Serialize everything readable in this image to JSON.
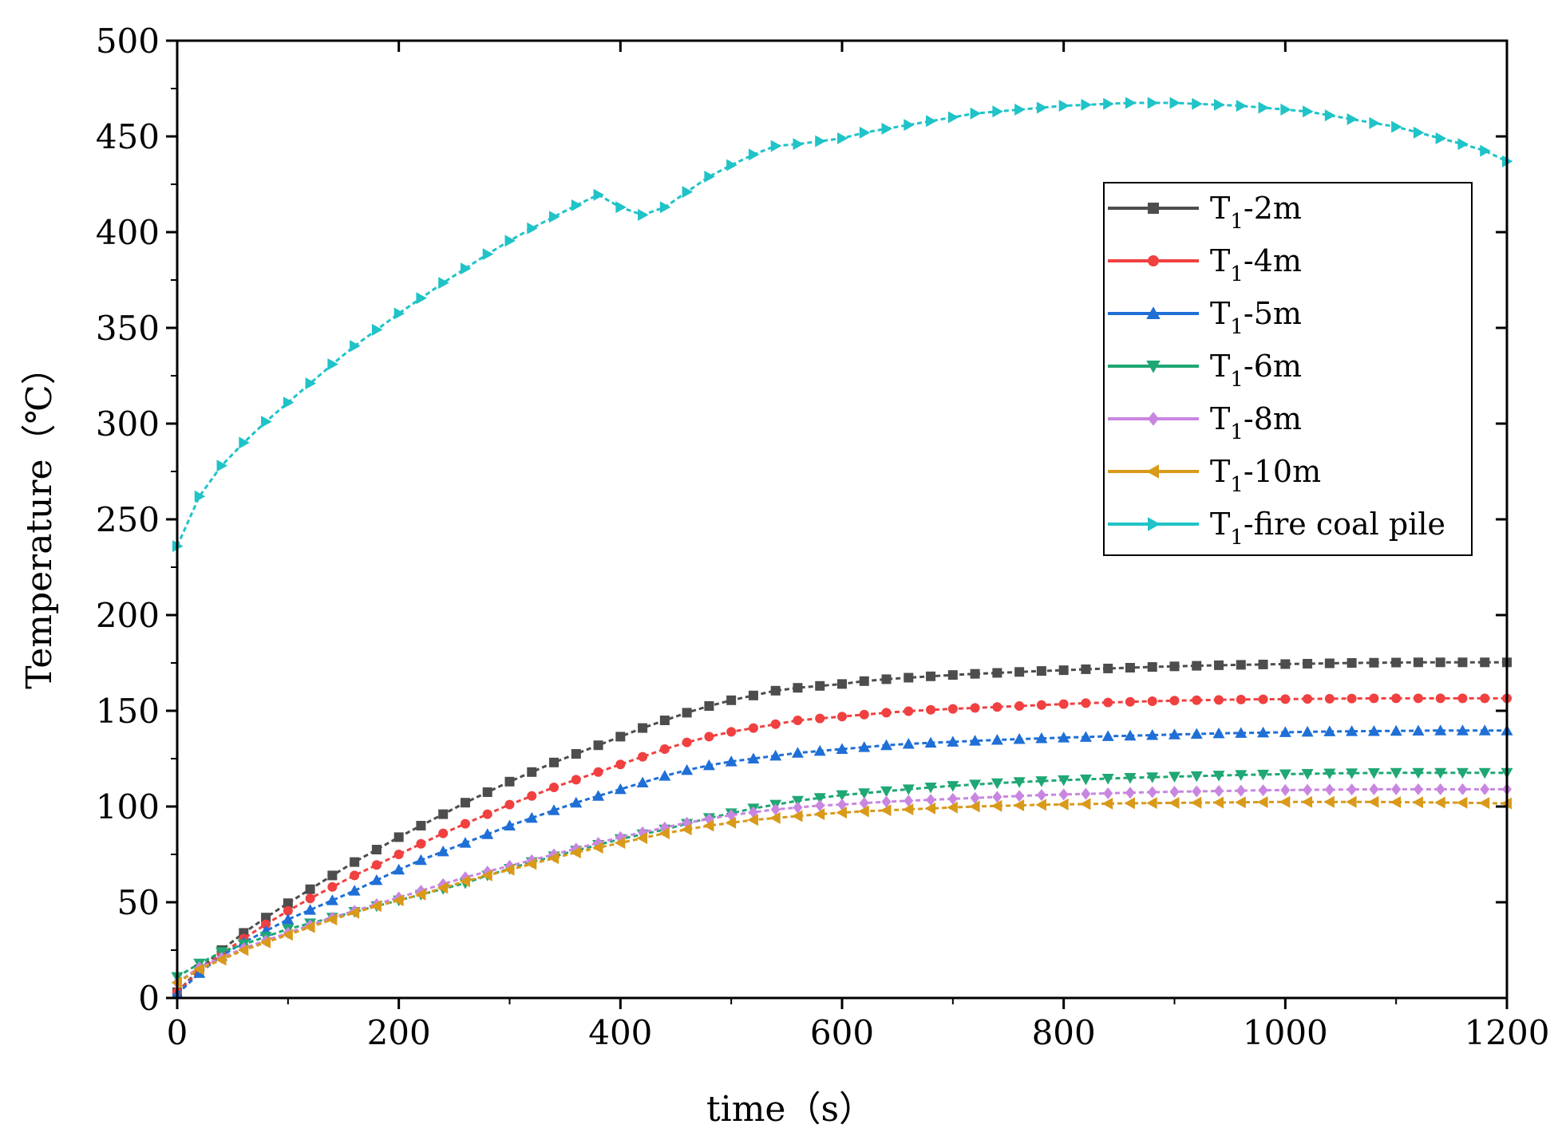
{
  "chart_data": {
    "type": "line",
    "title": "",
    "xlabel": "time（s）",
    "ylabel": "Temperature（℃）",
    "xlim": [
      0,
      1200
    ],
    "ylim": [
      0,
      500
    ],
    "xticks": [
      0,
      200,
      400,
      600,
      800,
      1000,
      1200
    ],
    "yticks": [
      0,
      50,
      100,
      150,
      200,
      250,
      300,
      350,
      400,
      450,
      500
    ],
    "grid": false,
    "legend_position": "upper-right",
    "x": [
      0,
      20,
      40,
      60,
      80,
      100,
      120,
      140,
      160,
      180,
      200,
      220,
      240,
      260,
      280,
      300,
      320,
      340,
      360,
      380,
      400,
      420,
      440,
      460,
      480,
      500,
      520,
      540,
      560,
      580,
      600,
      620,
      640,
      660,
      680,
      700,
      720,
      740,
      760,
      780,
      800,
      820,
      840,
      860,
      880,
      900,
      920,
      940,
      960,
      980,
      1000,
      1020,
      1040,
      1060,
      1080,
      1100,
      1120,
      1140,
      1160,
      1180,
      1200
    ],
    "series": [
      {
        "name": "T1-2m",
        "sub": "1",
        "suffix": "-2m",
        "color": "#4d4d4d",
        "marker": "square",
        "values": [
          3.0,
          15.0,
          25.0,
          34.0,
          42.0,
          49.5,
          56.8,
          64.0,
          71.0,
          77.5,
          84.0,
          90.0,
          96.0,
          102.0,
          107.5,
          113.0,
          118.0,
          123.0,
          127.5,
          132.0,
          136.5,
          141.0,
          145.0,
          149.0,
          152.5,
          155.5,
          158.0,
          160.5,
          162.0,
          163.0,
          164.0,
          165.5,
          166.5,
          167.3,
          168.0,
          168.7,
          169.3,
          169.8,
          170.3,
          170.8,
          171.2,
          171.7,
          172.1,
          172.5,
          172.9,
          173.2,
          173.5,
          173.8,
          174.0,
          174.2,
          174.4,
          174.6,
          174.8,
          175.0,
          175.1,
          175.2,
          175.3,
          175.3,
          175.3,
          175.3,
          175.3
        ]
      },
      {
        "name": "T1-4m",
        "sub": "1",
        "suffix": "-4m",
        "color": "#f04040",
        "marker": "circle",
        "values": [
          3.0,
          14.0,
          23.0,
          31.0,
          38.5,
          45.5,
          52.0,
          58.0,
          64.0,
          69.5,
          75.0,
          80.5,
          86.0,
          91.0,
          96.0,
          101.0,
          105.5,
          110.0,
          114.0,
          118.0,
          122.0,
          126.0,
          130.0,
          133.5,
          136.5,
          139.0,
          141.0,
          143.0,
          145.0,
          146.0,
          147.0,
          148.0,
          149.0,
          149.8,
          150.5,
          151.0,
          151.5,
          152.0,
          152.5,
          153.0,
          153.5,
          154.0,
          154.3,
          154.7,
          155.0,
          155.3,
          155.5,
          155.7,
          155.9,
          156.0,
          156.1,
          156.2,
          156.3,
          156.4,
          156.5,
          156.5,
          156.5,
          156.5,
          156.5,
          156.5,
          156.5
        ]
      },
      {
        "name": "T1-5m",
        "sub": "1",
        "suffix": "-5m",
        "color": "#1f6fd6",
        "marker": "triangle-up",
        "values": [
          2.0,
          13.0,
          22.0,
          29.0,
          35.0,
          41.0,
          46.0,
          51.0,
          56.0,
          61.5,
          67.0,
          72.0,
          76.5,
          81.0,
          85.5,
          90.0,
          94.0,
          98.0,
          102.0,
          105.5,
          109.0,
          112.5,
          116.0,
          119.0,
          121.5,
          123.5,
          125.0,
          126.5,
          128.0,
          129.0,
          130.0,
          131.0,
          132.0,
          132.7,
          133.3,
          133.8,
          134.3,
          134.8,
          135.2,
          135.6,
          136.0,
          136.3,
          136.7,
          137.0,
          137.3,
          137.6,
          137.9,
          138.2,
          138.4,
          138.6,
          138.8,
          139.0,
          139.2,
          139.3,
          139.4,
          139.5,
          139.6,
          139.7,
          139.7,
          139.7,
          139.7
        ]
      },
      {
        "name": "T1-6m",
        "sub": "1",
        "suffix": "-6m",
        "color": "#1fa774",
        "marker": "triangle-down",
        "values": [
          11.0,
          18.0,
          24.0,
          28.0,
          32.0,
          36.0,
          39.0,
          42.0,
          45.0,
          48.0,
          51.0,
          54.0,
          57.0,
          60.0,
          64.0,
          67.5,
          71.0,
          74.0,
          77.0,
          80.0,
          83.0,
          85.5,
          88.0,
          91.0,
          94.0,
          96.5,
          99.0,
          101.0,
          103.0,
          104.5,
          106.0,
          107.0,
          108.0,
          109.0,
          110.0,
          110.8,
          111.5,
          112.2,
          112.8,
          113.3,
          113.8,
          114.2,
          114.6,
          115.0,
          115.3,
          115.6,
          115.9,
          116.2,
          116.5,
          116.7,
          116.9,
          117.1,
          117.3,
          117.4,
          117.5,
          117.6,
          117.6,
          117.6,
          117.6,
          117.6,
          117.6
        ]
      },
      {
        "name": "T1-8m",
        "sub": "1",
        "suffix": "-8m",
        "color": "#c986e0",
        "marker": "diamond",
        "values": [
          8.0,
          16.0,
          21.0,
          26.0,
          30.0,
          34.0,
          38.0,
          42.0,
          45.5,
          49.0,
          52.5,
          56.0,
          59.5,
          63.0,
          66.0,
          69.0,
          72.0,
          75.0,
          78.0,
          81.0,
          84.0,
          86.5,
          89.0,
          91.5,
          93.5,
          95.5,
          97.0,
          98.5,
          99.5,
          100.5,
          101.0,
          101.8,
          102.5,
          103.0,
          103.5,
          104.0,
          104.5,
          105.0,
          105.5,
          106.0,
          106.3,
          106.6,
          106.9,
          107.2,
          107.5,
          107.7,
          107.9,
          108.1,
          108.3,
          108.5,
          108.6,
          108.7,
          108.8,
          108.9,
          109.0,
          109.0,
          109.0,
          109.0,
          109.0,
          109.0,
          109.0
        ]
      },
      {
        "name": "T1-10m",
        "sub": "1",
        "suffix": "-10m",
        "color": "#d99a1a",
        "marker": "triangle-left",
        "values": [
          8.0,
          15.0,
          20.0,
          25.0,
          29.0,
          33.0,
          37.0,
          41.0,
          44.5,
          48.0,
          51.0,
          54.0,
          57.5,
          61.0,
          64.0,
          67.0,
          70.0,
          73.0,
          76.0,
          78.5,
          81.0,
          83.5,
          86.0,
          88.0,
          90.0,
          91.5,
          93.0,
          94.0,
          95.0,
          96.0,
          96.8,
          97.5,
          98.0,
          98.5,
          99.0,
          99.5,
          100.0,
          100.3,
          100.6,
          100.9,
          101.1,
          101.3,
          101.5,
          101.7,
          101.8,
          101.9,
          102.0,
          102.1,
          102.2,
          102.3,
          102.4,
          102.4,
          102.4,
          102.4,
          102.4,
          102.3,
          102.2,
          102.1,
          102.0,
          101.8,
          101.6
        ]
      },
      {
        "name": "T1-fire coal pile",
        "sub": "1",
        "suffix": "-fire coal pile",
        "color": "#1fc3c8",
        "marker": "triangle-right",
        "values": [
          236.0,
          262.0,
          278.0,
          290.0,
          301.0,
          311.0,
          321.0,
          331.0,
          340.5,
          349.0,
          357.5,
          365.5,
          373.5,
          381.0,
          388.5,
          395.5,
          402.0,
          408.0,
          414.0,
          419.5,
          413.0,
          409.0,
          413.0,
          421.0,
          429.0,
          435.0,
          440.5,
          445.0,
          446.0,
          447.5,
          449.0,
          452.0,
          454.0,
          456.0,
          458.0,
          460.0,
          462.0,
          463.0,
          464.0,
          465.0,
          466.0,
          466.5,
          467.0,
          467.5,
          467.5,
          467.5,
          467.0,
          466.5,
          466.0,
          465.0,
          464.0,
          463.0,
          461.0,
          459.0,
          457.0,
          455.0,
          452.0,
          449.0,
          446.0,
          442.5,
          437.0
        ]
      }
    ]
  }
}
